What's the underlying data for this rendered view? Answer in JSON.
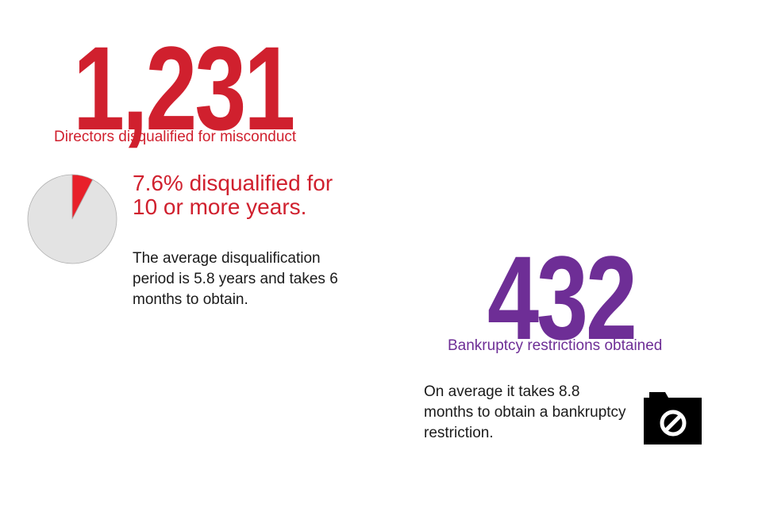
{
  "directors": {
    "count": "1,231",
    "label": "Directors disqualified for misconduct",
    "pie_headline": "7.6% disqualified for 10 or more years.",
    "body": "The average disqualification period is 5.8 years and takes 6 months to obtain."
  },
  "bankruptcy": {
    "count": "432",
    "label": "Bankruptcy restrictions obtained",
    "body": "On average it takes 8.8 months to obtain a bankruptcy restriction."
  },
  "icons": {
    "restriction": "camera-prohibited-icon"
  },
  "colors": {
    "red": "#d0202e",
    "pie_highlight": "#e8202a",
    "pie_rest": "#e3e3e3",
    "purple": "#6e2e96",
    "text": "#1a1a1a"
  },
  "chart_data": {
    "type": "pie",
    "values": [
      7.6,
      92.4
    ],
    "colors": [
      "#e8202a",
      "#e3e3e3"
    ],
    "start_angle_deg": 0
  }
}
